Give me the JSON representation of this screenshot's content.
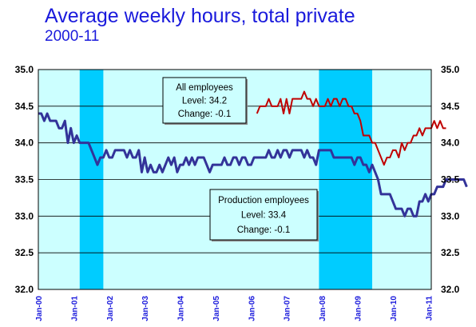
{
  "title": "Average weekly hours, total private",
  "subtitle": "2000-11",
  "chart_data": {
    "type": "line",
    "ylim": [
      32.0,
      35.0
    ],
    "yticks": [
      "32.0",
      "32.5",
      "33.0",
      "33.5",
      "34.0",
      "34.5",
      "35.0"
    ],
    "xtick_labels": [
      "Jan-00",
      "Jan-01",
      "Jan-02",
      "Jan-03",
      "Jan-04",
      "Jan-05",
      "Jan-06",
      "Jan-07",
      "Jan-08",
      "Jan-09",
      "Jan-10",
      "Jan-11"
    ],
    "x_start": "2000-01",
    "x_end": "2011-02",
    "recessions": [
      {
        "start": "2001-03",
        "end": "2001-11"
      },
      {
        "start": "2007-12",
        "end": "2009-06"
      }
    ],
    "colors": {
      "background": "#ccffff",
      "recession": "#00ccff",
      "production": "#333399",
      "all_employees": "#c00000",
      "title": "#1a1adc"
    },
    "series": [
      {
        "key": "production",
        "start": "2000-01",
        "values": [
          34.4,
          34.4,
          34.3,
          34.4,
          34.3,
          34.3,
          34.3,
          34.2,
          34.2,
          34.3,
          34.0,
          34.2,
          34.0,
          34.1,
          34.0,
          34.0,
          34.0,
          34.0,
          33.9,
          33.8,
          33.7,
          33.8,
          33.8,
          33.9,
          33.8,
          33.8,
          33.9,
          33.9,
          33.9,
          33.9,
          33.8,
          33.9,
          33.8,
          33.8,
          33.9,
          33.6,
          33.8,
          33.6,
          33.7,
          33.6,
          33.6,
          33.7,
          33.6,
          33.7,
          33.8,
          33.7,
          33.8,
          33.6,
          33.7,
          33.7,
          33.8,
          33.7,
          33.8,
          33.7,
          33.8,
          33.8,
          33.8,
          33.7,
          33.6,
          33.7,
          33.7,
          33.7,
          33.7,
          33.8,
          33.7,
          33.7,
          33.8,
          33.8,
          33.7,
          33.8,
          33.8,
          33.7,
          33.7,
          33.8,
          33.8,
          33.8,
          33.8,
          33.8,
          33.9,
          33.8,
          33.8,
          33.9,
          33.8,
          33.9,
          33.9,
          33.8,
          33.9,
          33.9,
          33.9,
          33.9,
          33.8,
          33.9,
          33.8,
          33.8,
          33.7,
          33.9,
          33.9,
          33.9,
          33.9,
          33.9,
          33.8,
          33.8,
          33.8,
          33.8,
          33.8,
          33.8,
          33.8,
          33.7,
          33.8,
          33.8,
          33.7,
          33.7,
          33.6,
          33.7,
          33.6,
          33.5,
          33.3,
          33.3,
          33.3,
          33.3,
          33.2,
          33.1,
          33.1,
          33.1,
          33.0,
          33.1,
          33.1,
          33.0,
          33.0,
          33.2,
          33.2,
          33.3,
          33.2,
          33.3,
          33.3,
          33.4,
          33.4,
          33.4,
          33.5,
          33.5,
          33.5,
          33.5,
          33.5,
          33.5,
          33.5,
          33.4
        ]
      },
      {
        "key": "all_employees",
        "start": "2006-03",
        "values": [
          34.4,
          34.5,
          34.5,
          34.5,
          34.6,
          34.5,
          34.5,
          34.5,
          34.6,
          34.4,
          34.6,
          34.4,
          34.6,
          34.6,
          34.6,
          34.6,
          34.7,
          34.6,
          34.6,
          34.5,
          34.6,
          34.5,
          34.5,
          34.5,
          34.6,
          34.5,
          34.6,
          34.6,
          34.5,
          34.6,
          34.6,
          34.5,
          34.5,
          34.4,
          34.4,
          34.3,
          34.1,
          34.1,
          34.1,
          34.0,
          34.0,
          33.9,
          33.8,
          33.7,
          33.8,
          33.8,
          33.9,
          33.9,
          33.8,
          34.0,
          33.9,
          34.0,
          34.0,
          34.1,
          34.1,
          34.2,
          34.1,
          34.2,
          34.2,
          34.2,
          34.3,
          34.2,
          34.3,
          34.2,
          34.2
        ]
      }
    ],
    "annotations": [
      {
        "key": "all_employees",
        "lines": [
          "All employees",
          "Level: 34.2",
          "Change: -0.1"
        ]
      },
      {
        "key": "production",
        "lines": [
          "Production employees",
          "Level: 33.4",
          "Change: -0.1"
        ]
      }
    ]
  }
}
